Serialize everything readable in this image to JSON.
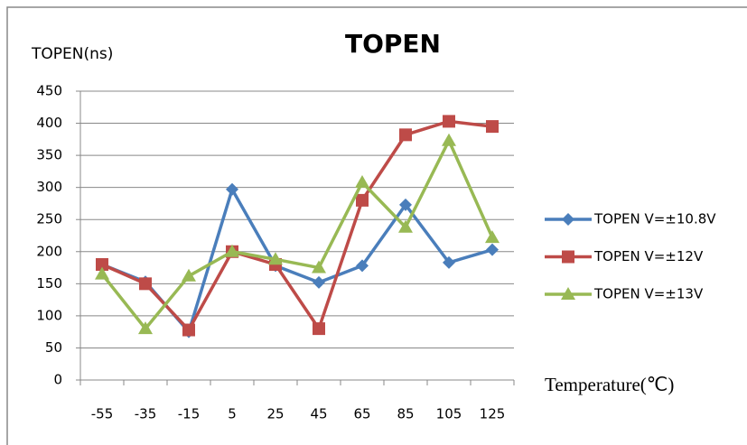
{
  "chart_data": {
    "type": "line",
    "title": "TOPEN",
    "y_label": "TOPEN(ns)",
    "x_label": "Temperature(℃)",
    "categories": [
      "-55",
      "-35",
      "-15",
      "5",
      "25",
      "45",
      "65",
      "85",
      "105",
      "125"
    ],
    "series": [
      {
        "name": "TOPEN V=±10.8V",
        "color": "#4a7ebb",
        "marker": "diamond",
        "values": [
          180,
          153,
          75,
          297,
          178,
          152,
          178,
          273,
          183,
          203
        ]
      },
      {
        "name": "TOPEN V=±12V",
        "color": "#be4b48",
        "marker": "square",
        "values": [
          180,
          150,
          78,
          200,
          180,
          80,
          280,
          382,
          403,
          395
        ]
      },
      {
        "name": "TOPEN V=±13V",
        "color": "#98b954",
        "marker": "triangle",
        "values": [
          165,
          80,
          162,
          200,
          188,
          175,
          308,
          238,
          373,
          222
        ]
      }
    ],
    "ylim": [
      0,
      450
    ],
    "yticks": [
      0,
      50,
      100,
      150,
      200,
      250,
      300,
      350,
      400,
      450
    ],
    "grid": true,
    "legend": "right"
  }
}
